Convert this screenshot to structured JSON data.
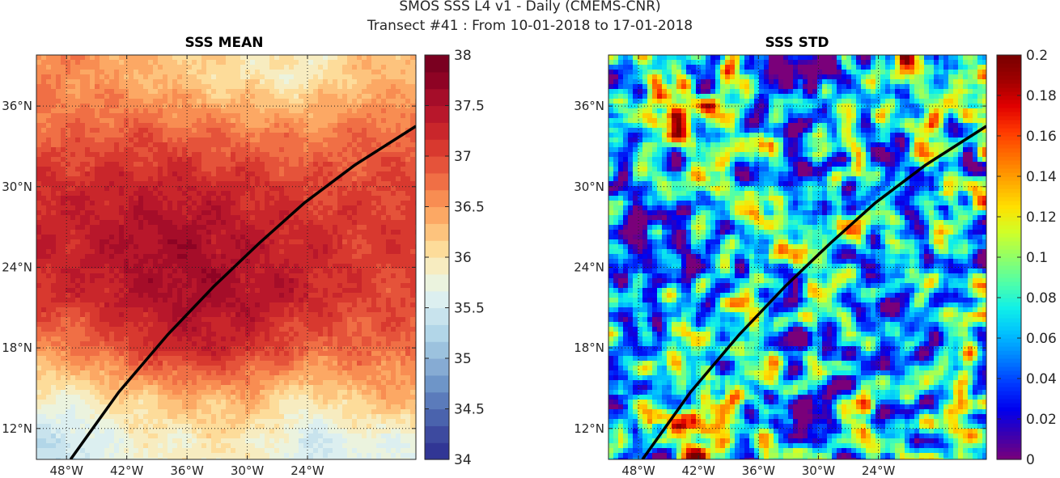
{
  "figure": {
    "title_line1": "SMOS SSS L4 v1 - Daily (CMEMS-CNR)",
    "title_line2": "Transect #41 : From 10-01-2018 to 17-01-2018"
  },
  "chart_data": [
    {
      "type": "heatmap",
      "title": "SSS MEAN",
      "xlim": [
        -51,
        -13.2
      ],
      "ylim": [
        9.7,
        39.8
      ],
      "x_ticks": [
        -48,
        -42,
        -36,
        -30,
        -24
      ],
      "x_tick_labels": [
        "48°W",
        "42°W",
        "36°W",
        "30°W",
        "24°W"
      ],
      "y_ticks": [
        12,
        18,
        24,
        30,
        36
      ],
      "y_tick_labels": [
        "12°N",
        "18°N",
        "24°N",
        "30°N",
        "36°N"
      ],
      "grid": true,
      "colormap": "RdYlBu_r",
      "colorbar": {
        "range": [
          34,
          38
        ],
        "tick_values": [
          34,
          34.5,
          35,
          35.5,
          36,
          36.5,
          37,
          37.5,
          38
        ],
        "tick_labels": [
          "34",
          "34.5",
          "35",
          "35.5",
          "36",
          "36.5",
          "37",
          "37.5",
          "38"
        ],
        "levels": 24
      },
      "colorbar_colors": [
        "#313695",
        "#3d4a9f",
        "#4a63ad",
        "#5b7bbb",
        "#6e95c8",
        "#86abd3",
        "#9cc2de",
        "#b2d6e8",
        "#c8e3ed",
        "#dceff0",
        "#ebf3de",
        "#f7ecc0",
        "#fddc9a",
        "#fdc37d",
        "#fca864",
        "#f88d52",
        "#f06f45",
        "#e5533a",
        "#d8392f",
        "#c9262b",
        "#b8172b",
        "#a50d29",
        "#8e0324",
        "#7a0020"
      ],
      "transect": {
        "lon": [
          -47.6,
          -42.8,
          -37.9,
          -33.3,
          -28.8,
          -24.3,
          -19.3,
          -13.2
        ],
        "lat": [
          9.7,
          14.7,
          19.0,
          22.6,
          25.8,
          28.8,
          31.6,
          34.5
        ]
      },
      "field_samples": {
        "note_ignore": false,
        "lat_rows": [
          38,
          34,
          30,
          26,
          22,
          18,
          14,
          11
        ],
        "lon_cols": [
          -48,
          -42,
          -36,
          -30,
          -24,
          -18
        ],
        "sss": [
          [
            36.6,
            36.4,
            36.2,
            36.0,
            35.9,
            36.3
          ],
          [
            36.8,
            36.9,
            36.8,
            36.7,
            36.6,
            36.8
          ],
          [
            37.2,
            37.3,
            37.3,
            37.2,
            37.0,
            37.0
          ],
          [
            37.3,
            37.5,
            37.6,
            37.4,
            37.2,
            37.1
          ],
          [
            37.2,
            37.4,
            37.6,
            37.5,
            37.3,
            37.0
          ],
          [
            36.6,
            37.0,
            37.3,
            37.2,
            36.8,
            36.8
          ],
          [
            35.8,
            36.1,
            36.3,
            36.3,
            35.9,
            36.3
          ],
          [
            35.4,
            35.8,
            35.9,
            36.0,
            35.5,
            35.7
          ]
        ]
      }
    },
    {
      "type": "heatmap",
      "title": "SSS STD",
      "xlim": [
        -51,
        -13.2
      ],
      "ylim": [
        9.7,
        39.8
      ],
      "x_ticks": [
        -48,
        -42,
        -36,
        -30,
        -24
      ],
      "x_tick_labels": [
        "48°W",
        "42°W",
        "36°W",
        "30°W",
        "24°W"
      ],
      "y_ticks": [
        12,
        18,
        24,
        30,
        36
      ],
      "y_tick_labels": [
        "12°N",
        "18°N",
        "24°N",
        "30°N",
        "36°N"
      ],
      "grid": true,
      "colormap": "jet",
      "colorbar": {
        "range": [
          0,
          0.2
        ],
        "tick_values": [
          0,
          0.02,
          0.04,
          0.06,
          0.08,
          0.1,
          0.12,
          0.14,
          0.16,
          0.18,
          0.2
        ],
        "tick_labels": [
          "0",
          "0.02",
          "0.04",
          "0.06",
          "0.08",
          "0.1",
          "0.12",
          "0.14",
          "0.16",
          "0.18",
          "0.2"
        ]
      },
      "colorbar_colors": [
        "#7a007a",
        "#3a00b0",
        "#0000ee",
        "#0038ff",
        "#0080ff",
        "#00c0ff",
        "#10f0e8",
        "#50ffa8",
        "#90ff68",
        "#d0ff28",
        "#ffe000",
        "#ffa800",
        "#ff7000",
        "#ff3800",
        "#e00000",
        "#a00000",
        "#780000"
      ],
      "transect": {
        "lon": [
          -47.6,
          -42.8,
          -37.9,
          -33.3,
          -28.8,
          -24.3,
          -19.3,
          -13.2
        ],
        "lat": [
          9.7,
          14.7,
          19.0,
          22.6,
          25.8,
          28.8,
          31.6,
          34.5
        ]
      }
    }
  ]
}
